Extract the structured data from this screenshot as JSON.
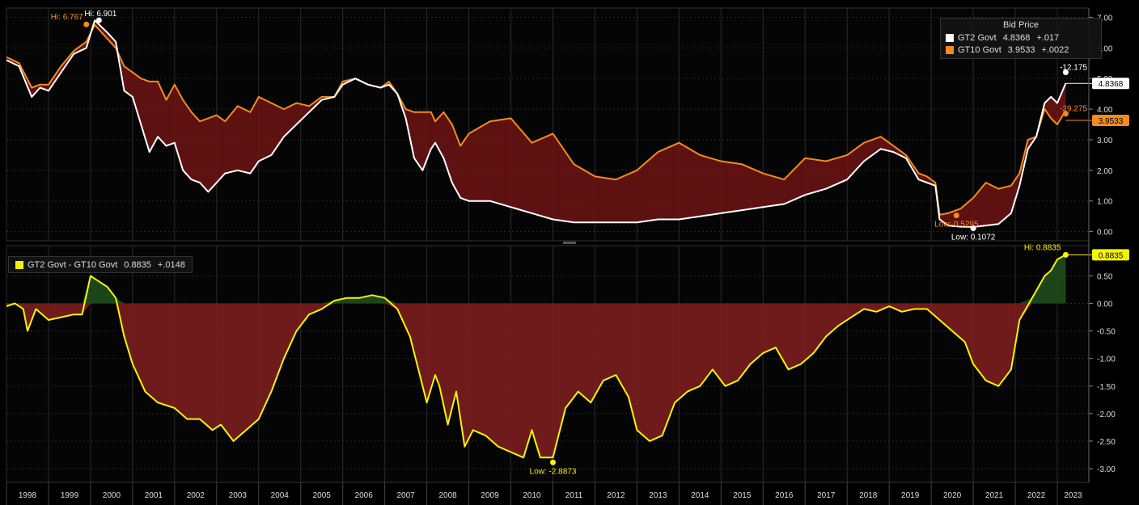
{
  "chart_data": [
    {
      "type": "line",
      "panel": "top",
      "legend_title": "Bid Price",
      "ylim": [
        -0.3,
        7.3
      ],
      "yticks": [
        "7.00",
        "6.00",
        "5.00",
        "4.00",
        "3.00",
        "2.00",
        "1.00",
        "0.00"
      ],
      "ytick_values": [
        7,
        6,
        5,
        4,
        3,
        2,
        1,
        0
      ],
      "fill_between": "dark red",
      "series": [
        {
          "name": "GT2 Govt",
          "last": "4.8368",
          "change": "+.017",
          "color": "#ffffff",
          "x": [
            1998.0,
            1998.3,
            1998.6,
            1998.8,
            1999.0,
            1999.3,
            1999.6,
            1999.9,
            2000.1,
            2000.4,
            2000.6,
            2000.8,
            2001.0,
            2001.2,
            2001.4,
            2001.6,
            2001.8,
            2002.0,
            2002.2,
            2002.4,
            2002.6,
            2002.8,
            2003.0,
            2003.2,
            2003.5,
            2003.8,
            2004.0,
            2004.3,
            2004.6,
            2004.9,
            2005.2,
            2005.5,
            2005.8,
            2006.0,
            2006.3,
            2006.6,
            2006.9,
            2007.1,
            2007.3,
            2007.5,
            2007.7,
            2007.9,
            2008.1,
            2008.2,
            2008.4,
            2008.6,
            2008.8,
            2009.0,
            2009.5,
            2010.0,
            2010.5,
            2011.0,
            2011.5,
            2012.0,
            2012.5,
            2013.0,
            2013.5,
            2014.0,
            2014.5,
            2015.0,
            2015.5,
            2016.0,
            2016.5,
            2017.0,
            2017.5,
            2018.0,
            2018.4,
            2018.8,
            2019.1,
            2019.4,
            2019.7,
            2019.9,
            2020.1,
            2020.2,
            2020.4,
            2020.7,
            2021.0,
            2021.3,
            2021.6,
            2021.9,
            2022.1,
            2022.3,
            2022.5,
            2022.7,
            2022.85,
            2023.0,
            2023.2
          ],
          "y": [
            5.6,
            5.4,
            4.4,
            4.7,
            4.6,
            5.2,
            5.8,
            6.0,
            6.9,
            6.5,
            6.2,
            4.6,
            4.4,
            3.5,
            2.6,
            3.1,
            2.8,
            2.9,
            2.0,
            1.7,
            1.6,
            1.3,
            1.6,
            1.9,
            2.0,
            1.9,
            2.3,
            2.5,
            3.1,
            3.5,
            3.9,
            4.3,
            4.4,
            4.8,
            5.0,
            4.8,
            4.7,
            4.8,
            4.5,
            3.7,
            2.4,
            2.0,
            2.7,
            2.9,
            2.4,
            1.6,
            1.1,
            1.0,
            1.0,
            0.8,
            0.6,
            0.4,
            0.3,
            0.3,
            0.3,
            0.3,
            0.4,
            0.4,
            0.5,
            0.6,
            0.7,
            0.8,
            0.9,
            1.2,
            1.4,
            1.7,
            2.3,
            2.7,
            2.6,
            2.4,
            1.7,
            1.6,
            1.5,
            0.4,
            0.2,
            0.16,
            0.15,
            0.2,
            0.25,
            0.6,
            1.5,
            2.7,
            3.1,
            4.2,
            4.4,
            4.2,
            4.84
          ]
        },
        {
          "name": "GT10 Govt",
          "last": "3.9533",
          "change": "+.0022",
          "color": "#f28c1c",
          "x": [
            1998.0,
            1998.3,
            1998.6,
            1998.8,
            1999.0,
            1999.3,
            1999.6,
            1999.9,
            2000.1,
            2000.4,
            2000.6,
            2000.8,
            2001.0,
            2001.2,
            2001.4,
            2001.6,
            2001.8,
            2002.0,
            2002.2,
            2002.4,
            2002.6,
            2002.8,
            2003.0,
            2003.2,
            2003.5,
            2003.8,
            2004.0,
            2004.3,
            2004.6,
            2004.9,
            2005.2,
            2005.5,
            2005.8,
            2006.0,
            2006.3,
            2006.6,
            2006.9,
            2007.1,
            2007.3,
            2007.5,
            2007.7,
            2007.9,
            2008.1,
            2008.2,
            2008.4,
            2008.6,
            2008.8,
            2009.0,
            2009.5,
            2010.0,
            2010.5,
            2011.0,
            2011.5,
            2012.0,
            2012.5,
            2013.0,
            2013.5,
            2014.0,
            2014.5,
            2015.0,
            2015.5,
            2016.0,
            2016.5,
            2017.0,
            2017.5,
            2018.0,
            2018.4,
            2018.8,
            2019.1,
            2019.4,
            2019.7,
            2019.9,
            2020.1,
            2020.2,
            2020.4,
            2020.7,
            2021.0,
            2021.3,
            2021.6,
            2021.9,
            2022.1,
            2022.3,
            2022.5,
            2022.7,
            2022.85,
            2023.0,
            2023.2
          ],
          "y": [
            5.7,
            5.5,
            4.7,
            4.8,
            4.8,
            5.4,
            5.9,
            6.2,
            6.75,
            6.3,
            6.0,
            5.4,
            5.2,
            5.0,
            4.9,
            4.9,
            4.3,
            4.8,
            4.3,
            3.9,
            3.6,
            3.7,
            3.8,
            3.6,
            4.1,
            3.9,
            4.4,
            4.2,
            4.0,
            4.2,
            4.1,
            4.4,
            4.4,
            4.9,
            5.0,
            4.8,
            4.7,
            4.9,
            4.5,
            4.0,
            3.9,
            3.9,
            3.9,
            3.6,
            3.9,
            3.5,
            2.8,
            3.2,
            3.6,
            3.7,
            2.9,
            3.2,
            2.2,
            1.8,
            1.7,
            2.0,
            2.6,
            2.9,
            2.5,
            2.3,
            2.2,
            1.9,
            1.7,
            2.4,
            2.3,
            2.5,
            2.9,
            3.1,
            2.8,
            2.5,
            1.9,
            1.8,
            1.6,
            0.55,
            0.6,
            0.75,
            1.1,
            1.6,
            1.4,
            1.5,
            1.9,
            3.0,
            3.1,
            4.0,
            3.7,
            3.5,
            3.95
          ]
        }
      ],
      "annotations": [
        {
          "text": "Hi: 6.767",
          "x": 1999.9,
          "y": 6.767,
          "color": "#f28c1c"
        },
        {
          "text": "Hi: 6.901",
          "x": 2000.2,
          "y": 6.901,
          "color": "#ffffff"
        },
        {
          "text": "Low: 0.5295",
          "x": 2020.6,
          "y": 0.5295,
          "color": "#f28c1c"
        },
        {
          "text": "Low: 0.1072",
          "x": 2021.0,
          "y": 0.1072,
          "color": "#ffffff"
        },
        {
          "text": "-12.175",
          "x": 2023.2,
          "y": 5.2,
          "color": "#ffffff"
        },
        {
          "text": "-29.275",
          "x": 2023.2,
          "y": 3.85,
          "color": "#f28c1c"
        }
      ]
    },
    {
      "type": "line",
      "panel": "bottom",
      "ylim": [
        -3.25,
        1.05
      ],
      "yticks": [
        "0.50",
        "0.00",
        "-0.50",
        "-1.00",
        "-1.50",
        "-2.00",
        "-2.50",
        "-3.00"
      ],
      "ytick_values": [
        0.5,
        0,
        -0.5,
        -1,
        -1.5,
        -2,
        -2.5,
        -3
      ],
      "fill_to_zero": {
        "positive": "#1d4a1a",
        "negative": "#7b1e1e"
      },
      "series": [
        {
          "name": "GT2 Govt - GT10 Govt",
          "last": "0.8835",
          "change": "+.0148",
          "color": "#f5f500",
          "x": [
            1998.0,
            1998.2,
            1998.4,
            1998.5,
            1998.7,
            1999.0,
            1999.3,
            1999.6,
            1999.8,
            2000.0,
            2000.2,
            2000.4,
            2000.6,
            2000.8,
            2001.0,
            2001.3,
            2001.6,
            2002.0,
            2002.3,
            2002.6,
            2002.9,
            2003.1,
            2003.4,
            2003.7,
            2004.0,
            2004.3,
            2004.6,
            2004.9,
            2005.2,
            2005.5,
            2005.8,
            2006.1,
            2006.4,
            2006.7,
            2007.0,
            2007.3,
            2007.6,
            2007.8,
            2008.0,
            2008.2,
            2008.3,
            2008.5,
            2008.7,
            2008.9,
            2009.1,
            2009.4,
            2009.7,
            2010.0,
            2010.3,
            2010.5,
            2010.7,
            2011.0,
            2011.3,
            2011.6,
            2011.9,
            2012.2,
            2012.5,
            2012.8,
            2013.0,
            2013.3,
            2013.6,
            2013.9,
            2014.2,
            2014.5,
            2014.8,
            2015.1,
            2015.4,
            2015.7,
            2016.0,
            2016.3,
            2016.6,
            2016.9,
            2017.2,
            2017.5,
            2017.8,
            2018.1,
            2018.4,
            2018.7,
            2019.0,
            2019.3,
            2019.6,
            2019.9,
            2020.2,
            2020.5,
            2020.8,
            2021.0,
            2021.3,
            2021.6,
            2021.9,
            2022.1,
            2022.4,
            2022.7,
            2022.85,
            2023.0,
            2023.2
          ],
          "y": [
            -0.05,
            0.0,
            -0.1,
            -0.5,
            -0.1,
            -0.3,
            -0.25,
            -0.2,
            -0.2,
            0.5,
            0.4,
            0.3,
            0.1,
            -0.6,
            -1.1,
            -1.6,
            -1.8,
            -1.9,
            -2.1,
            -2.1,
            -2.3,
            -2.2,
            -2.5,
            -2.3,
            -2.1,
            -1.6,
            -1.0,
            -0.5,
            -0.2,
            -0.1,
            0.05,
            0.1,
            0.1,
            0.15,
            0.1,
            -0.1,
            -0.6,
            -1.2,
            -1.8,
            -1.3,
            -1.5,
            -2.2,
            -1.6,
            -2.6,
            -2.3,
            -2.4,
            -2.6,
            -2.7,
            -2.8,
            -2.3,
            -2.8,
            -2.8,
            -1.9,
            -1.6,
            -1.8,
            -1.4,
            -1.3,
            -1.7,
            -2.3,
            -2.5,
            -2.4,
            -1.8,
            -1.6,
            -1.5,
            -1.2,
            -1.5,
            -1.4,
            -1.1,
            -0.9,
            -0.8,
            -1.2,
            -1.1,
            -0.9,
            -0.6,
            -0.4,
            -0.25,
            -0.1,
            -0.15,
            -0.05,
            -0.15,
            -0.1,
            -0.1,
            -0.3,
            -0.5,
            -0.7,
            -1.1,
            -1.4,
            -1.5,
            -1.2,
            -0.3,
            0.1,
            0.5,
            0.6,
            0.8,
            0.8835
          ]
        }
      ],
      "annotations": [
        {
          "text": "Hi: 0.8835",
          "x": 2023.2,
          "y": 0.8835,
          "color": "#f5f500"
        },
        {
          "text": "Low: -2.8873",
          "x": 2011.0,
          "y": -2.8873,
          "color": "#f5f500"
        }
      ]
    }
  ],
  "x_axis": {
    "labels": [
      "1998",
      "1999",
      "2000",
      "2001",
      "2002",
      "2003",
      "2004",
      "2005",
      "2006",
      "2007",
      "2008",
      "2009",
      "2010",
      "2011",
      "2012",
      "2013",
      "2014",
      "2015",
      "2016",
      "2017",
      "2018",
      "2019",
      "2020",
      "2021",
      "2022",
      "2023"
    ],
    "range": [
      1998.0,
      2023.75
    ]
  },
  "colors": {
    "background": "#000000",
    "grid": "#2a2a2a",
    "axis_text": "#dddddd",
    "white_series": "#ffffff",
    "orange_series": "#f28c1c",
    "yellow_series": "#f5f500"
  }
}
